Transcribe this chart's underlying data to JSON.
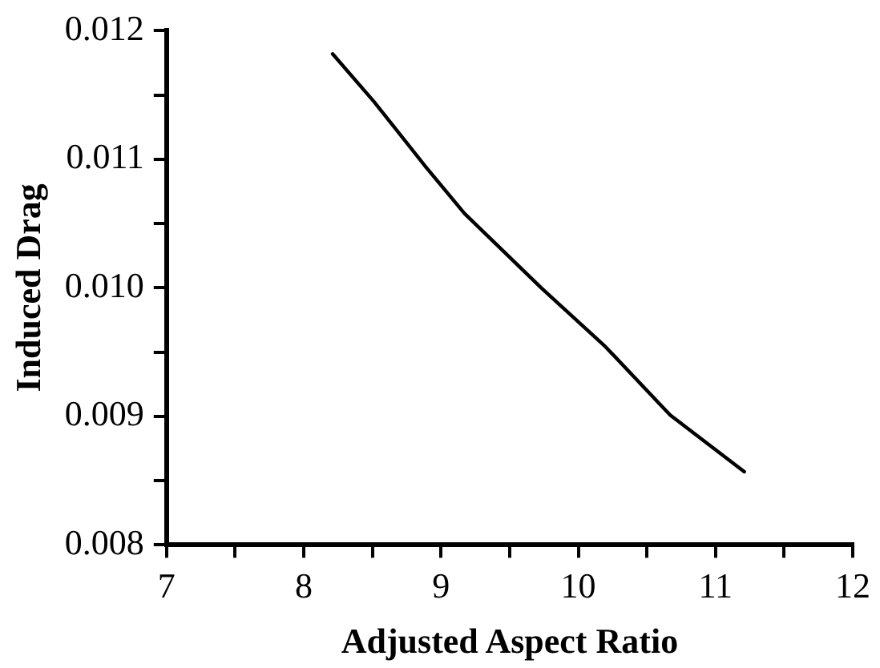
{
  "chart_data": {
    "type": "line",
    "xlabel": "Adjusted Aspect Ratio",
    "ylabel": "Induced Drag",
    "x": [
      8.21,
      8.51,
      8.89,
      9.17,
      9.73,
      10.2,
      10.67,
      11.21
    ],
    "series": [
      {
        "color": "#000000",
        "values": [
          0.01182,
          0.01145,
          0.01094,
          0.01058,
          0.01,
          0.00954,
          0.00901,
          0.00857
        ]
      }
    ],
    "xlim": [
      7,
      12
    ],
    "ylim": [
      0.008,
      0.012
    ],
    "xticks": [
      7,
      {
        "value": 7.5,
        "label": null
      },
      8,
      {
        "value": 8.5,
        "label": null
      },
      9,
      {
        "value": 9.5,
        "label": null
      },
      10,
      {
        "value": 10.5,
        "label": null
      },
      11,
      {
        "value": 11.5,
        "label": null
      },
      12
    ],
    "yticks": [
      {
        "value": 0.008,
        "label": "0.008"
      },
      {
        "value": 0.0085,
        "label": null
      },
      {
        "value": 0.009,
        "label": "0.009"
      },
      {
        "value": 0.0095,
        "label": null
      },
      {
        "value": 0.01,
        "label": "0.010"
      },
      {
        "value": 0.0105,
        "label": null
      },
      {
        "value": 0.011,
        "label": "0.011"
      },
      {
        "value": 0.0115,
        "label": null
      },
      {
        "value": 0.012,
        "label": "0.012"
      }
    ],
    "grid": false,
    "legend": false,
    "marker": "none",
    "line_style": "solid"
  }
}
